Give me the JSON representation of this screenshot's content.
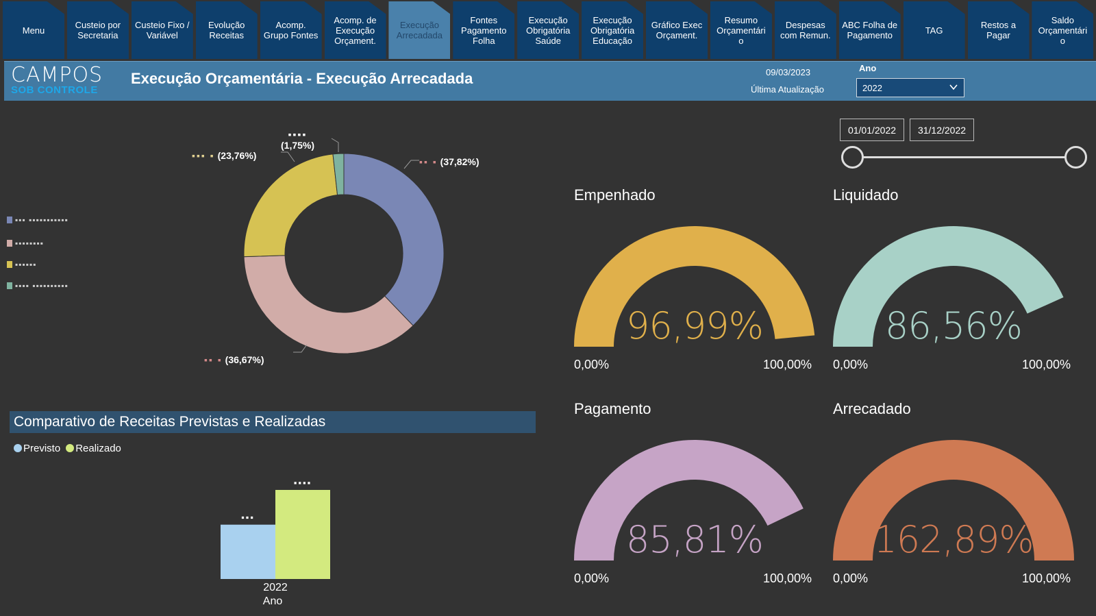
{
  "tabs": [
    {
      "label": "Menu"
    },
    {
      "label": "Custeio por Secretaria"
    },
    {
      "label": "Custeio Fixo / Variável"
    },
    {
      "label": "Evolução Receitas"
    },
    {
      "label": "Acomp. Grupo Fontes"
    },
    {
      "label": "Acomp. de Execução Orçament."
    },
    {
      "label": "Execução Arrecadada"
    },
    {
      "label": "Fontes Pagamento Folha"
    },
    {
      "label": "Execução Obrigatória Saúde"
    },
    {
      "label": "Execução Obrigatória Educação"
    },
    {
      "label": "Gráfico Exec Orçament."
    },
    {
      "label": "Resumo Orçamentári o"
    },
    {
      "label": "Despesas com Remun."
    },
    {
      "label": "ABC Folha de Pagamento"
    },
    {
      "label": "TAG"
    },
    {
      "label": "Restos a Pagar"
    },
    {
      "label": "Saldo Orçamentári o"
    }
  ],
  "active_tab_index": 6,
  "header": {
    "logo_top": "CAMPOS",
    "logo_bottom": "SOB CONTROLE",
    "title": "Execução Orçamentária - Execução Arrecadada",
    "date": "09/03/2023",
    "update_label": "Última Atualização",
    "ano_label": "Ano",
    "ano_value": "2022"
  },
  "date_range": {
    "start": "01/01/2022",
    "end": "31/12/2022"
  },
  "donut": {
    "legend": [
      {
        "text": "▪▪▪ ▪▪▪▪▪▪▪▪▪▪▪",
        "color": "#7a87b5"
      },
      {
        "text": "▪▪▪▪▪▪▪▪",
        "color": "#d1aca8"
      },
      {
        "text": "▪▪▪▪▪▪",
        "color": "#d6c253"
      },
      {
        "text": "▪▪▪▪ ▪▪▪▪▪▪▪▪▪▪",
        "color": "#7fb3a0"
      }
    ],
    "labels": [
      {
        "redacted": "▪▪ ▪",
        "pct": "(37,82%)"
      },
      {
        "redacted": "▪▪ ▪",
        "pct": "(36,67%)"
      },
      {
        "redacted": "▪▪▪ ▪",
        "pct": "(23,76%)"
      },
      {
        "redacted": "▪▪▪▪",
        "pct": "(1,75%)"
      }
    ]
  },
  "chart_data": [
    {
      "type": "pie",
      "donut": true,
      "values": [
        37.82,
        36.67,
        23.76,
        1.75
      ],
      "colors": [
        "#7a87b5",
        "#d1aca8",
        "#d6c253",
        "#7fb3a0"
      ],
      "labels": [
        "(37,82%)",
        "(36,67%)",
        "(23,76%)",
        "(1,75%)"
      ]
    },
    {
      "type": "bar",
      "title": "Comparativo de Receitas Previstas e Realizadas",
      "categories": [
        "2022"
      ],
      "xlabel": "Ano",
      "series": [
        {
          "name": "Previsto",
          "values": [
            0.61
          ],
          "color": "#a9d1ef"
        },
        {
          "name": "Realizado",
          "values": [
            1.0
          ],
          "color": "#d3ea7f"
        }
      ]
    }
  ],
  "gauges": [
    {
      "title": "Empenhado",
      "value_label": "96,99%",
      "value": 96.99,
      "min": "0,00%",
      "max": "100,00%",
      "color": "#e0b04b"
    },
    {
      "title": "Liquidado",
      "value_label": "86,56%",
      "value": 86.56,
      "min": "0,00%",
      "max": "100,00%",
      "color": "#a8d1c7"
    },
    {
      "title": "Pagamento",
      "value_label": "85,81%",
      "value": 85.81,
      "min": "0,00%",
      "max": "100,00%",
      "color": "#c6a4c6"
    },
    {
      "title": "Arrecadado",
      "value_label": "162,89%",
      "value": 162.89,
      "min": "0,00%",
      "max": "100,00%",
      "color": "#cf7a53"
    }
  ],
  "bar_chart": {
    "title": "Comparativo de Receitas Previstas e Realizadas",
    "legend_previsto": "Previsto",
    "legend_realizado": "Realizado",
    "previsto_label": "▪▪▪",
    "realizado_label": "▪▪▪▪",
    "category": "2022",
    "axis_label": "Ano"
  }
}
